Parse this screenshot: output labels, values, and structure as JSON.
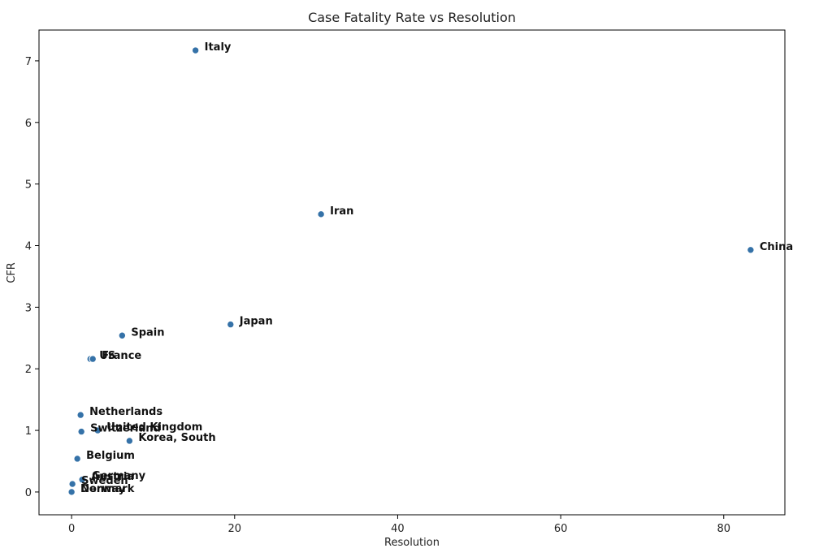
{
  "chart_data": {
    "type": "scatter",
    "title": "Case Fatality Rate vs Resolution",
    "xlabel": "Resolution",
    "ylabel": "CFR",
    "xlim": [
      -4,
      87.5
    ],
    "ylim": [
      -0.37,
      7.5
    ],
    "xticks": [
      0,
      20,
      40,
      60,
      80
    ],
    "yticks": [
      0,
      1,
      2,
      3,
      4,
      5,
      6,
      7
    ],
    "grid": false,
    "points": [
      {
        "label": "Italy",
        "x": 15.2,
        "y": 7.17
      },
      {
        "label": "Iran",
        "x": 30.6,
        "y": 4.51
      },
      {
        "label": "China",
        "x": 83.3,
        "y": 3.93
      },
      {
        "label": "Japan",
        "x": 19.5,
        "y": 2.72
      },
      {
        "label": "Spain",
        "x": 6.2,
        "y": 2.54
      },
      {
        "label": "US",
        "x": 2.3,
        "y": 2.16
      },
      {
        "label": "France",
        "x": 2.6,
        "y": 2.16
      },
      {
        "label": "Netherlands",
        "x": 1.1,
        "y": 1.25
      },
      {
        "label": "United Kingdom",
        "x": 3.2,
        "y": 1.0
      },
      {
        "label": "Switzerland",
        "x": 1.2,
        "y": 0.98
      },
      {
        "label": "Korea, South",
        "x": 7.1,
        "y": 0.83
      },
      {
        "label": "Belgium",
        "x": 0.7,
        "y": 0.54
      },
      {
        "label": "Germany",
        "x": 1.4,
        "y": 0.21
      },
      {
        "label": "Austria",
        "x": 1.3,
        "y": 0.2
      },
      {
        "label": "Sweden",
        "x": 0.1,
        "y": 0.13
      },
      {
        "label": "Denmark",
        "x": 0.0,
        "y": 0.0
      },
      {
        "label": "Norway",
        "x": 0.0,
        "y": 0.0
      }
    ]
  }
}
